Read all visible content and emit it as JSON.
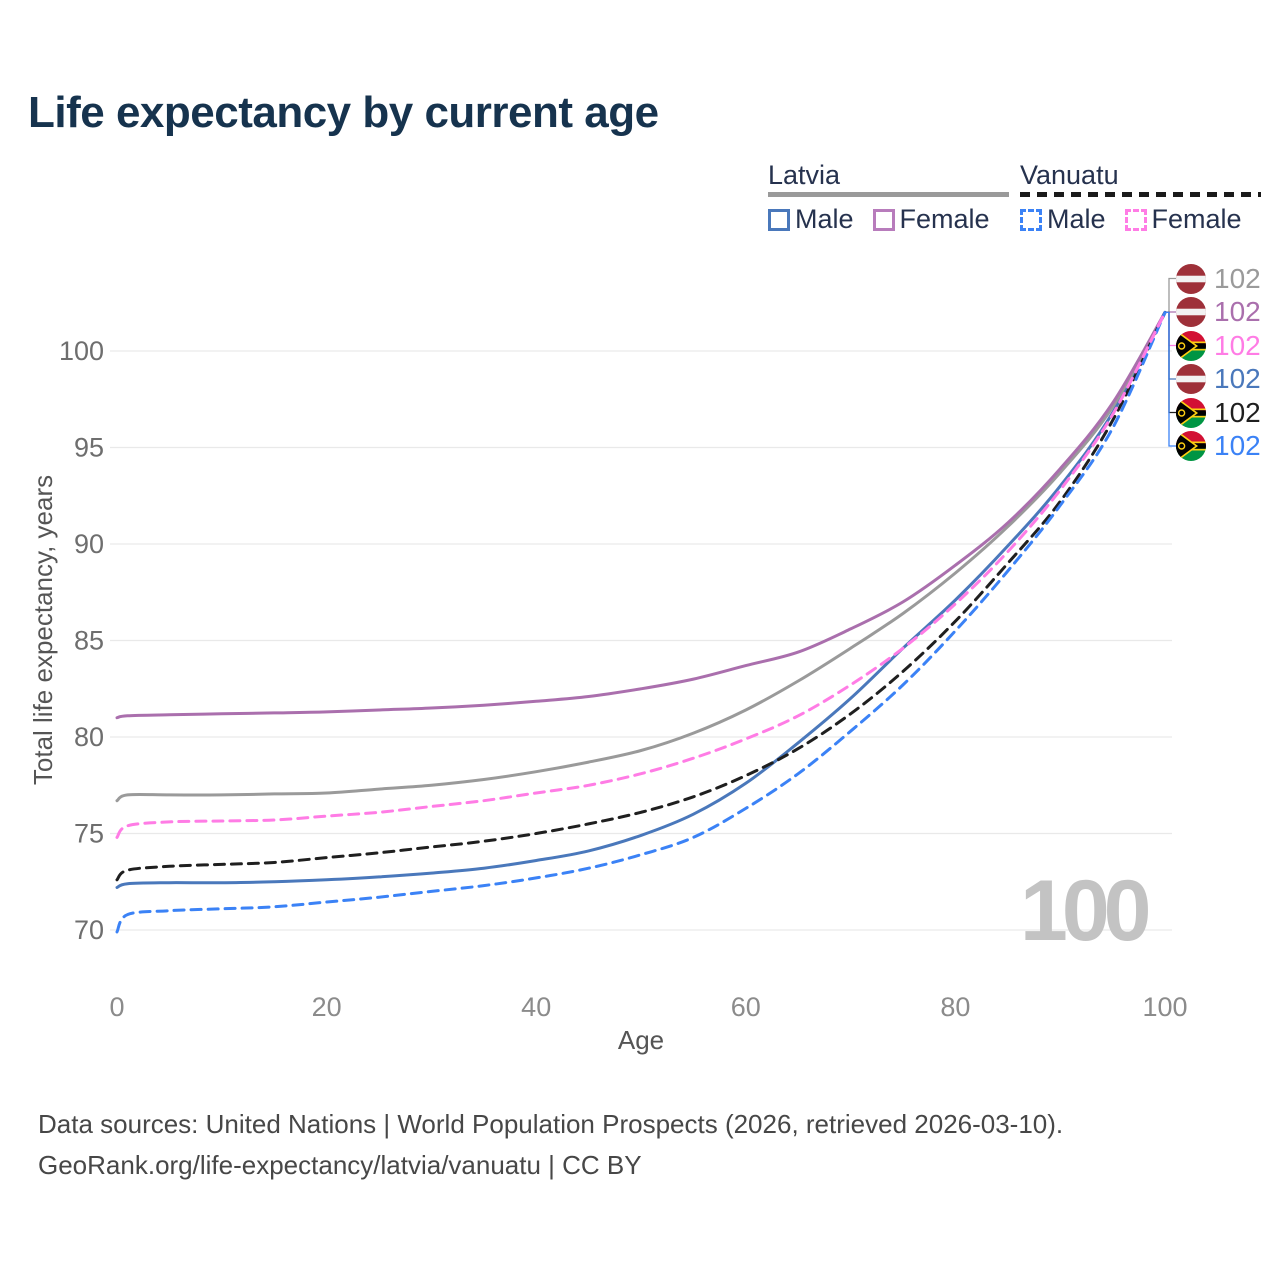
{
  "title": "Life expectancy by current age",
  "watermark_age": "100",
  "legend": {
    "groups": [
      {
        "label": "Latvia",
        "line_style": "solid",
        "underline_color": "#9a9a9a",
        "items": [
          {
            "label": "Male",
            "color": "#4a78bb",
            "dashed": false
          },
          {
            "label": "Female",
            "color": "#b87cbc",
            "dashed": false
          }
        ]
      },
      {
        "label": "Vanuatu",
        "line_style": "dashed",
        "underline_color": "#1a1a1a",
        "items": [
          {
            "label": "Male",
            "color": "#3b82f6",
            "dashed": true
          },
          {
            "label": "Female",
            "color": "#ff7ce5",
            "dashed": true
          }
        ]
      }
    ]
  },
  "footer": {
    "line1": "Data sources: United Nations | World Population Prospects (2026, retrieved 2026-03-10).",
    "line2": "GeoRank.org/life-expectancy/latvia/vanuatu | CC BY"
  },
  "flag_colors": {
    "lv": {
      "red": "#9E3039",
      "white": "#f2f2f2"
    },
    "vu": {
      "red": "#D21034",
      "green": "#009543",
      "yellow": "#FDCE12",
      "black": "#000000"
    }
  },
  "chart_data": {
    "type": "line",
    "title": "Life expectancy by current age",
    "xlabel": "Age",
    "ylabel": "Total life expectancy, years",
    "x_ticks": [
      0,
      20,
      40,
      60,
      80,
      100
    ],
    "y_ticks": [
      70,
      75,
      80,
      85,
      90,
      95,
      100
    ],
    "xlim": [
      0,
      100
    ],
    "ylim": [
      68,
      103
    ],
    "grid": "horizontal",
    "legend_position": "top-right",
    "x": [
      0,
      1,
      5,
      10,
      15,
      20,
      25,
      30,
      35,
      40,
      45,
      50,
      55,
      60,
      65,
      70,
      75,
      80,
      85,
      90,
      95,
      100
    ],
    "series": [
      {
        "name": "Latvia — Male",
        "country": "Latvia",
        "sex": "Male",
        "color": "#4a78bb",
        "dash": "solid",
        "values": [
          72.2,
          72.4,
          72.45,
          72.45,
          72.5,
          72.6,
          72.75,
          72.95,
          73.2,
          73.6,
          74.1,
          74.9,
          76.0,
          77.6,
          79.7,
          82.0,
          84.6,
          87.1,
          89.9,
          93.0,
          96.8,
          102
        ]
      },
      {
        "name": "Latvia — Both sexes",
        "country": "Latvia",
        "sex": "Both",
        "color": "#9a9a9a",
        "dash": "solid",
        "values": [
          76.7,
          77.0,
          77.0,
          77.0,
          77.05,
          77.1,
          77.3,
          77.5,
          77.8,
          78.2,
          78.7,
          79.3,
          80.2,
          81.4,
          82.9,
          84.6,
          86.4,
          88.5,
          90.9,
          93.7,
          97.1,
          102
        ]
      },
      {
        "name": "Latvia — Female",
        "country": "Latvia",
        "sex": "Female",
        "color": "#aa6fad",
        "dash": "solid",
        "values": [
          81.0,
          81.1,
          81.15,
          81.2,
          81.25,
          81.3,
          81.4,
          81.5,
          81.65,
          81.85,
          82.1,
          82.5,
          83.0,
          83.7,
          84.4,
          85.6,
          87.0,
          88.9,
          91.1,
          93.9,
          97.3,
          102
        ]
      },
      {
        "name": "Vanuatu — Both sexes",
        "country": "Vanuatu",
        "sex": "Both",
        "color": "#1f1f1f",
        "dash": "dashed",
        "values": [
          72.6,
          73.1,
          73.3,
          73.4,
          73.5,
          73.75,
          74.0,
          74.3,
          74.6,
          75.0,
          75.5,
          76.1,
          76.9,
          78.0,
          79.4,
          81.2,
          83.4,
          86.0,
          89.0,
          92.2,
          96.4,
          102
        ]
      },
      {
        "name": "Vanuatu — Male",
        "country": "Vanuatu",
        "sex": "Male",
        "color": "#3b82f6",
        "dash": "dashed",
        "values": [
          69.9,
          70.8,
          71.0,
          71.1,
          71.2,
          71.45,
          71.7,
          72.0,
          72.3,
          72.7,
          73.2,
          73.9,
          74.8,
          76.3,
          78.1,
          80.3,
          82.7,
          85.5,
          88.6,
          92.0,
          96.0,
          102
        ]
      },
      {
        "name": "Vanuatu — Female",
        "country": "Vanuatu",
        "sex": "Female",
        "color": "#ff7ce5",
        "dash": "dashed",
        "values": [
          74.8,
          75.4,
          75.6,
          75.65,
          75.7,
          75.9,
          76.1,
          76.4,
          76.7,
          77.1,
          77.5,
          78.1,
          78.9,
          79.9,
          81.1,
          82.7,
          84.6,
          86.9,
          89.6,
          92.8,
          96.7,
          102
        ]
      }
    ],
    "end_labels": [
      {
        "flag": "lv",
        "series": "Latvia — Both sexes",
        "color": "#9a9a9a",
        "value": "102"
      },
      {
        "flag": "lv",
        "series": "Latvia — Female",
        "color": "#aa6fad",
        "value": "102"
      },
      {
        "flag": "vu",
        "series": "Vanuatu — Female",
        "color": "#ff7ce5",
        "value": "102"
      },
      {
        "flag": "lv",
        "series": "Latvia — Male",
        "color": "#4a78bb",
        "value": "102"
      },
      {
        "flag": "vu",
        "series": "Vanuatu — Both sexes",
        "color": "#1f1f1f",
        "value": "102"
      },
      {
        "flag": "vu",
        "series": "Vanuatu — Male",
        "color": "#3b82f6",
        "value": "102"
      }
    ]
  }
}
